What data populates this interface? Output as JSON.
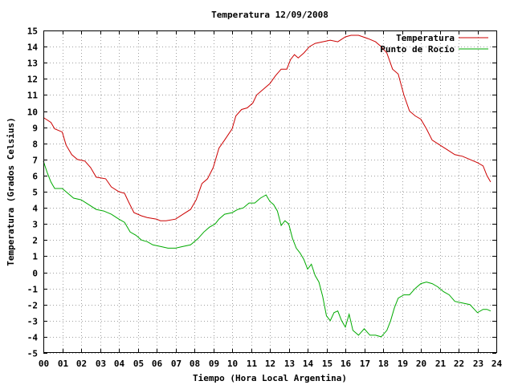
{
  "chart_data": {
    "type": "line",
    "title": "Temperatura 12/09/2008",
    "xlabel": "Tiempo (Hora Local Argentina)",
    "ylabel": "Temperatura (Grados Celsius)",
    "xlim": [
      0,
      24
    ],
    "ylim": [
      -5,
      15
    ],
    "x_ticks": [
      "00",
      "01",
      "02",
      "03",
      "04",
      "05",
      "06",
      "07",
      "08",
      "09",
      "10",
      "11",
      "12",
      "13",
      "14",
      "15",
      "16",
      "17",
      "18",
      "19",
      "20",
      "21",
      "22",
      "23",
      "24"
    ],
    "y_ticks": [
      -5,
      -4,
      -3,
      -2,
      -1,
      0,
      1,
      2,
      3,
      4,
      5,
      6,
      7,
      8,
      9,
      10,
      11,
      12,
      13,
      14,
      15
    ],
    "grid": true,
    "legend_position": "top-right",
    "series": [
      {
        "name": "Temperatura",
        "color": "#cc0000",
        "points": [
          [
            0.0,
            9.6
          ],
          [
            0.4,
            9.3
          ],
          [
            0.6,
            8.9
          ],
          [
            1.0,
            8.7
          ],
          [
            1.2,
            7.9
          ],
          [
            1.5,
            7.3
          ],
          [
            1.8,
            7.0
          ],
          [
            2.2,
            6.9
          ],
          [
            2.5,
            6.5
          ],
          [
            2.8,
            5.9
          ],
          [
            3.3,
            5.8
          ],
          [
            3.6,
            5.3
          ],
          [
            4.0,
            5.0
          ],
          [
            4.3,
            4.9
          ],
          [
            4.5,
            4.4
          ],
          [
            4.8,
            3.7
          ],
          [
            5.2,
            3.5
          ],
          [
            5.5,
            3.4
          ],
          [
            6.0,
            3.3
          ],
          [
            6.2,
            3.2
          ],
          [
            6.5,
            3.2
          ],
          [
            7.0,
            3.3
          ],
          [
            7.4,
            3.6
          ],
          [
            7.8,
            3.9
          ],
          [
            8.1,
            4.5
          ],
          [
            8.4,
            5.5
          ],
          [
            8.7,
            5.8
          ],
          [
            9.0,
            6.5
          ],
          [
            9.3,
            7.7
          ],
          [
            9.6,
            8.2
          ],
          [
            10.0,
            8.9
          ],
          [
            10.2,
            9.7
          ],
          [
            10.5,
            10.1
          ],
          [
            10.8,
            10.2
          ],
          [
            11.1,
            10.5
          ],
          [
            11.3,
            11.0
          ],
          [
            11.6,
            11.3
          ],
          [
            12.0,
            11.7
          ],
          [
            12.3,
            12.2
          ],
          [
            12.6,
            12.6
          ],
          [
            12.9,
            12.6
          ],
          [
            13.1,
            13.2
          ],
          [
            13.3,
            13.5
          ],
          [
            13.5,
            13.3
          ],
          [
            13.8,
            13.6
          ],
          [
            14.1,
            14.0
          ],
          [
            14.4,
            14.2
          ],
          [
            14.8,
            14.3
          ],
          [
            15.2,
            14.4
          ],
          [
            15.6,
            14.3
          ],
          [
            16.0,
            14.6
          ],
          [
            16.3,
            14.7
          ],
          [
            16.7,
            14.7
          ],
          [
            17.2,
            14.5
          ],
          [
            17.6,
            14.3
          ],
          [
            17.9,
            14.0
          ],
          [
            18.2,
            13.6
          ],
          [
            18.5,
            12.6
          ],
          [
            18.8,
            12.3
          ],
          [
            19.1,
            11.0
          ],
          [
            19.4,
            10.0
          ],
          [
            19.7,
            9.7
          ],
          [
            20.0,
            9.5
          ],
          [
            20.3,
            8.9
          ],
          [
            20.6,
            8.2
          ],
          [
            21.0,
            7.9
          ],
          [
            21.4,
            7.6
          ],
          [
            21.8,
            7.3
          ],
          [
            22.2,
            7.2
          ],
          [
            22.6,
            7.0
          ],
          [
            23.0,
            6.8
          ],
          [
            23.3,
            6.6
          ],
          [
            23.5,
            6.0
          ],
          [
            23.7,
            5.6
          ]
        ]
      },
      {
        "name": "Punto de Rocío",
        "color": "#00aa00",
        "points": [
          [
            0.0,
            6.9
          ],
          [
            0.2,
            6.2
          ],
          [
            0.4,
            5.6
          ],
          [
            0.6,
            5.2
          ],
          [
            1.0,
            5.2
          ],
          [
            1.3,
            4.9
          ],
          [
            1.6,
            4.6
          ],
          [
            2.0,
            4.5
          ],
          [
            2.4,
            4.2
          ],
          [
            2.8,
            3.9
          ],
          [
            3.2,
            3.8
          ],
          [
            3.6,
            3.6
          ],
          [
            4.0,
            3.3
          ],
          [
            4.3,
            3.1
          ],
          [
            4.6,
            2.5
          ],
          [
            4.9,
            2.3
          ],
          [
            5.2,
            2.0
          ],
          [
            5.5,
            1.9
          ],
          [
            5.8,
            1.7
          ],
          [
            6.2,
            1.6
          ],
          [
            6.6,
            1.5
          ],
          [
            7.0,
            1.5
          ],
          [
            7.4,
            1.6
          ],
          [
            7.8,
            1.7
          ],
          [
            8.2,
            2.1
          ],
          [
            8.5,
            2.5
          ],
          [
            8.8,
            2.8
          ],
          [
            9.1,
            3.0
          ],
          [
            9.3,
            3.3
          ],
          [
            9.6,
            3.6
          ],
          [
            10.0,
            3.7
          ],
          [
            10.3,
            3.9
          ],
          [
            10.6,
            4.0
          ],
          [
            10.9,
            4.3
          ],
          [
            11.2,
            4.3
          ],
          [
            11.5,
            4.6
          ],
          [
            11.8,
            4.8
          ],
          [
            12.0,
            4.4
          ],
          [
            12.2,
            4.2
          ],
          [
            12.4,
            3.8
          ],
          [
            12.6,
            2.9
          ],
          [
            12.8,
            3.2
          ],
          [
            13.0,
            3.0
          ],
          [
            13.2,
            2.1
          ],
          [
            13.4,
            1.5
          ],
          [
            13.6,
            1.2
          ],
          [
            13.8,
            0.8
          ],
          [
            14.0,
            0.2
          ],
          [
            14.2,
            0.5
          ],
          [
            14.4,
            -0.2
          ],
          [
            14.6,
            -0.6
          ],
          [
            14.8,
            -1.5
          ],
          [
            15.0,
            -2.7
          ],
          [
            15.2,
            -3.0
          ],
          [
            15.4,
            -2.5
          ],
          [
            15.6,
            -2.4
          ],
          [
            15.8,
            -3.0
          ],
          [
            16.0,
            -3.4
          ],
          [
            16.2,
            -2.6
          ],
          [
            16.4,
            -3.6
          ],
          [
            16.7,
            -3.9
          ],
          [
            17.0,
            -3.5
          ],
          [
            17.3,
            -3.9
          ],
          [
            17.6,
            -3.9
          ],
          [
            17.9,
            -4.0
          ],
          [
            18.2,
            -3.6
          ],
          [
            18.4,
            -3.0
          ],
          [
            18.6,
            -2.2
          ],
          [
            18.8,
            -1.6
          ],
          [
            19.1,
            -1.4
          ],
          [
            19.4,
            -1.4
          ],
          [
            19.7,
            -1.0
          ],
          [
            20.0,
            -0.7
          ],
          [
            20.3,
            -0.6
          ],
          [
            20.6,
            -0.7
          ],
          [
            20.9,
            -0.9
          ],
          [
            21.2,
            -1.2
          ],
          [
            21.5,
            -1.4
          ],
          [
            21.8,
            -1.8
          ],
          [
            22.2,
            -1.9
          ],
          [
            22.6,
            -2.0
          ],
          [
            23.0,
            -2.5
          ],
          [
            23.3,
            -2.3
          ],
          [
            23.5,
            -2.3
          ],
          [
            23.7,
            -2.4
          ]
        ]
      }
    ]
  }
}
